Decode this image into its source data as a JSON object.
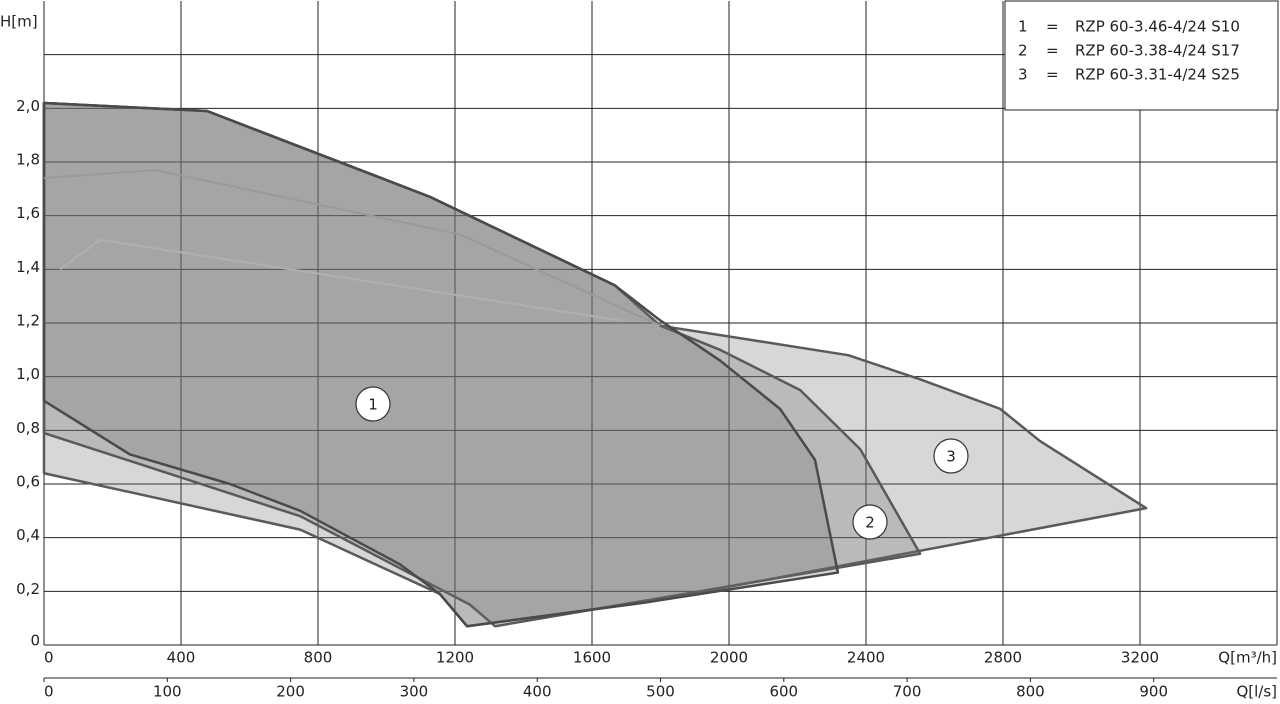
{
  "chart_data": {
    "type": "area",
    "y_label": "H[m]",
    "x_label": "Q[m³/h]",
    "x2_label": "Q[l/s]",
    "xlim": [
      0,
      3600
    ],
    "xticks": [
      0,
      400,
      800,
      1200,
      1600,
      2000,
      2400,
      2800,
      3200,
      {
        "value": 3600,
        "label": null
      }
    ],
    "x2lim": [
      0,
      1000
    ],
    "x2ticks": [
      0,
      100,
      200,
      300,
      400,
      500,
      600,
      700,
      800,
      900
    ],
    "ylim": [
      0,
      2.4
    ],
    "yticks": [
      0,
      {
        "value": 0.2,
        "label": "0,2"
      },
      {
        "value": 0.4,
        "label": "0,4"
      },
      {
        "value": 0.6,
        "label": "0,6"
      },
      {
        "value": 0.8,
        "label": "0,8"
      },
      {
        "value": 1.0,
        "label": "1,0"
      },
      {
        "value": 1.2,
        "label": "1,2"
      },
      {
        "value": 1.4,
        "label": "1,4"
      },
      {
        "value": 1.6,
        "label": "1,6"
      },
      {
        "value": 1.8,
        "label": "1,8"
      },
      {
        "value": 2.0,
        "label": "2,0"
      },
      {
        "value": 2.2,
        "label": null
      }
    ],
    "grid": true,
    "legend": "upper right",
    "legend_separator": "=",
    "series": [
      {
        "id": "1",
        "name": "RZP 60-3.46-4/24 S10",
        "color": "#4a4a4a",
        "x": [
          0,
          476,
          1127,
          1667,
          1799,
          1974,
          2149,
          2251,
          2318,
          1764,
          1235,
          1156,
          1040,
          748,
          543,
          251,
          0
        ],
        "values": [
          2.02,
          1.99,
          1.67,
          1.34,
          1.21,
          1.06,
          0.88,
          0.69,
          0.27,
          0.16,
          0.07,
          0.19,
          0.3,
          0.5,
          0.6,
          0.71,
          0.91
        ]
      },
      {
        "id": "2",
        "name": "RZP 60-3.38-4/24 S17",
        "color": "#5a5a5a",
        "x": [
          0,
          476,
          1127,
          1667,
          1799,
          1974,
          2208,
          2383,
          2558,
          1317,
          1244,
          748,
          0
        ],
        "values": [
          2.02,
          1.99,
          1.67,
          1.34,
          1.19,
          1.1,
          0.95,
          0.73,
          0.34,
          0.07,
          0.15,
          0.48,
          0.79
        ]
      },
      {
        "id": "3",
        "name": "RZP 60-3.31-4/24 S25",
        "color": "#5a5a5a",
        "x": [
          0,
          476,
          1127,
          1667,
          1799,
          2348,
          2558,
          2792,
          2908,
          3218,
          1764,
          1235,
          1156,
          748,
          0
        ],
        "values": [
          2.02,
          1.99,
          1.67,
          1.34,
          1.19,
          1.08,
          0.99,
          0.88,
          0.76,
          0.51,
          0.16,
          0.07,
          0.19,
          0.43,
          0.64
        ]
      }
    ],
    "curves": [
      {
        "color": "#9a9a9a",
        "x": [
          0,
          324,
          1215,
          1799
        ],
        "values": [
          1.74,
          1.77,
          1.53,
          1.19
        ]
      },
      {
        "color": "#b0b0b0",
        "x": [
          47,
          164,
          1682
        ],
        "values": [
          1.4,
          1.51,
          1.21
        ]
      }
    ]
  }
}
